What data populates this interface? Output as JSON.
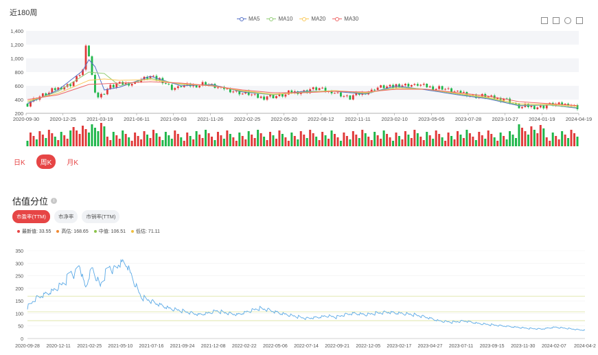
{
  "kline": {
    "title": "近180周",
    "legend": [
      {
        "name": "MA5",
        "color": "#5470c6"
      },
      {
        "name": "MA10",
        "color": "#91cc75"
      },
      {
        "name": "MA20",
        "color": "#fac858"
      },
      {
        "name": "MA30",
        "color": "#ee6666"
      }
    ],
    "tabs": [
      {
        "label": "日K",
        "active": false
      },
      {
        "label": "周K",
        "active": true
      },
      {
        "label": "月K",
        "active": false
      }
    ],
    "toolbox": [
      "zoom-icon",
      "zoom-reset-icon",
      "restore-icon",
      "save-image-icon"
    ]
  },
  "valuation": {
    "title": "估值分位",
    "info_icon": "info-icon",
    "tabs": [
      {
        "label": "市盈率(TTM)",
        "active": true
      },
      {
        "label": "市净率",
        "active": false
      },
      {
        "label": "市销率(TTM)",
        "active": false
      }
    ],
    "stats": [
      {
        "label": "最新值: 33.55",
        "color": "#e64545"
      },
      {
        "label": "高估: 168.65",
        "color": "#f08a32"
      },
      {
        "label": "中值: 106.51",
        "color": "#8bc34a"
      },
      {
        "label": "低估: 71.11",
        "color": "#f0c040"
      }
    ]
  },
  "chart_data": [
    {
      "type": "candlestick",
      "ylim": [
        200,
        1400
      ],
      "yticks": [
        "1,400",
        "1,200",
        "1,000",
        "800",
        "600",
        "400",
        "200"
      ],
      "x_ticks": [
        "2020-09-30",
        "2020-12-25",
        "2021-03-19",
        "2021-06-11",
        "2021-09-03",
        "2021-11-26",
        "2022-02-25",
        "2022-05-20",
        "2022-08-12",
        "2022-11-11",
        "2023-02-10",
        "2023-05-05",
        "2023-07-28",
        "2023-10-27",
        "2024-01-19",
        "2024-04-19"
      ],
      "close_series": {
        "x": [
          0,
          5,
          10,
          15,
          18,
          19,
          20,
          21,
          22,
          23,
          24,
          25,
          26,
          27,
          30,
          35,
          40,
          43,
          47,
          52,
          58,
          65,
          70,
          75,
          80,
          85,
          95,
          105,
          110,
          115,
          125,
          135,
          145,
          155,
          160,
          165,
          170,
          175,
          180
        ],
        "values": [
          340,
          470,
          560,
          650,
          830,
          1160,
          1050,
          760,
          520,
          430,
          460,
          500,
          560,
          600,
          620,
          650,
          740,
          690,
          570,
          600,
          630,
          540,
          500,
          440,
          440,
          490,
          560,
          430,
          510,
          580,
          620,
          560,
          460,
          410,
          300,
          290,
          320,
          340,
          270
        ]
      },
      "ma_series": [
        {
          "name": "MA5",
          "color": "#5470c6",
          "x": [
            0,
            10,
            18,
            20,
            22,
            25,
            30,
            40,
            50,
            60,
            70,
            80,
            90,
            100,
            110,
            120,
            130,
            140,
            150,
            160,
            170,
            180
          ],
          "values": [
            340,
            540,
            820,
            980,
            880,
            540,
            580,
            740,
            600,
            620,
            510,
            470,
            520,
            520,
            480,
            600,
            540,
            470,
            410,
            310,
            320,
            270
          ]
        },
        {
          "name": "MA10",
          "color": "#91cc75",
          "x": [
            0,
            10,
            20,
            25,
            30,
            40,
            50,
            60,
            70,
            80,
            90,
            100,
            110,
            120,
            130,
            140,
            150,
            160,
            170,
            180
          ],
          "values": [
            360,
            520,
            800,
            780,
            600,
            710,
            620,
            610,
            520,
            470,
            510,
            530,
            490,
            580,
            550,
            480,
            420,
            320,
            320,
            280
          ]
        },
        {
          "name": "MA20",
          "color": "#fac858",
          "x": [
            0,
            10,
            20,
            25,
            30,
            40,
            50,
            60,
            70,
            80,
            90,
            100,
            110,
            120,
            130,
            140,
            150,
            160,
            170,
            180
          ],
          "values": [
            380,
            490,
            680,
            700,
            680,
            690,
            630,
            600,
            530,
            480,
            500,
            530,
            500,
            560,
            550,
            490,
            430,
            340,
            330,
            300
          ]
        },
        {
          "name": "MA30",
          "color": "#ee6666",
          "x": [
            0,
            10,
            20,
            30,
            40,
            50,
            60,
            70,
            80,
            90,
            100,
            110,
            120,
            130,
            140,
            150,
            160,
            170,
            180
          ],
          "values": [
            400,
            470,
            620,
            640,
            660,
            640,
            600,
            540,
            500,
            500,
            520,
            510,
            550,
            550,
            500,
            450,
            370,
            340,
            310
          ]
        }
      ]
    },
    {
      "type": "line",
      "title": "估值分位",
      "ylim": [
        0,
        350
      ],
      "yticks": [
        0,
        50,
        100,
        150,
        200,
        250,
        300,
        350
      ],
      "x_ticks": [
        "2020-09-28",
        "2020-12-11",
        "2021-02-25",
        "2021-05-10",
        "2021-07-16",
        "2021-09-24",
        "2021-12-08",
        "2022-02-22",
        "2022-05-06",
        "2022-07-14",
        "2022-09-21",
        "2022-12-05",
        "2023-02-17",
        "2023-04-27",
        "2023-07-11",
        "2023-09-15",
        "2023-11-30",
        "2024-02-07",
        "2024-04-2"
      ],
      "series": [
        {
          "name": "市盈率(TTM)",
          "color": "#5aa9e6",
          "x": [
            0,
            20,
            40,
            60,
            80,
            90,
            100,
            110,
            120,
            135,
            150,
            170,
            190,
            200,
            215,
            230,
            250,
            265,
            280,
            300,
            330,
            360,
            400,
            420,
            440,
            470,
            490,
            520,
            540,
            560,
            590,
            620,
            650,
            680,
            700,
            720,
            740,
            760,
            790,
            810,
            840,
            870,
            900,
            930,
            960,
            990,
            1020,
            1050,
            1080,
            1110,
            1140,
            1170,
            1200,
            1230,
            1260,
            1290,
            1300
          ],
          "values": [
            125,
            160,
            175,
            190,
            215,
            230,
            270,
            250,
            300,
            200,
            280,
            210,
            290,
            270,
            300,
            300,
            220,
            165,
            155,
            140,
            120,
            110,
            95,
            100,
            110,
            100,
            95,
            110,
            120,
            115,
            100,
            90,
            80,
            85,
            90,
            85,
            95,
            100,
            95,
            100,
            105,
            100,
            95,
            85,
            70,
            65,
            70,
            60,
            55,
            50,
            45,
            40,
            38,
            45,
            40,
            34,
            33
          ]
        }
      ],
      "reference_lines": [
        {
          "name": "高估",
          "value": 168.65
        },
        {
          "name": "中值",
          "value": 106.51
        },
        {
          "name": "低估",
          "value": 71.11
        }
      ]
    }
  ]
}
